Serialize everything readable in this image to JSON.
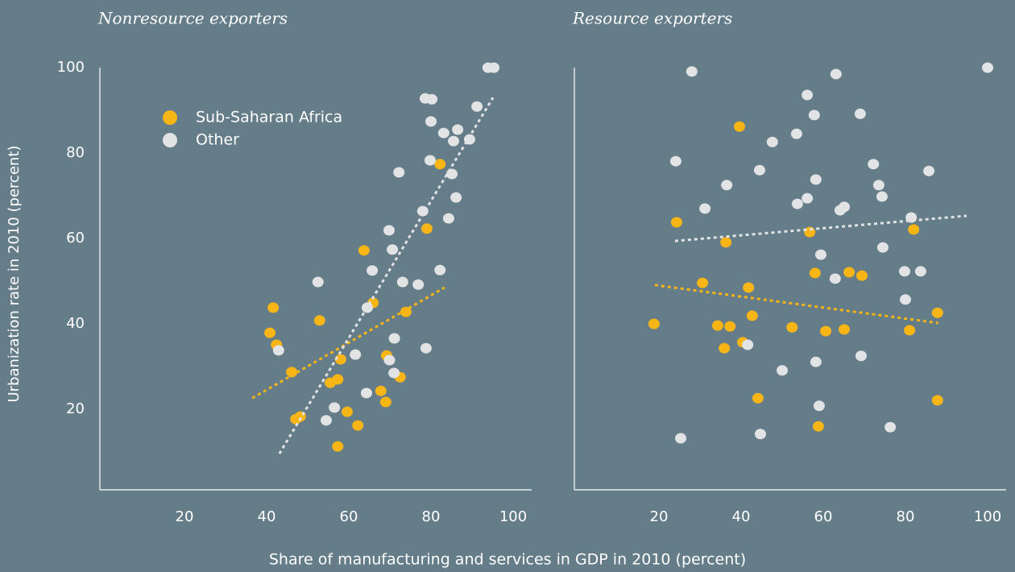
{
  "x_label": "Share of manufacturing and services in GDP in 2010 (percent)",
  "y_label": "Urbanization rate in 2010 (percent)",
  "chart_data": [
    {
      "type": "scatter",
      "title": "Nonresource exporters",
      "xlim": [
        0,
        100
      ],
      "ylim": [
        0,
        100
      ],
      "xticks": [
        20,
        40,
        60,
        80,
        100
      ],
      "yticks": [
        20,
        40,
        60,
        80,
        100
      ],
      "legend": "upper-left",
      "series": [
        {
          "name": "Sub-Saharan Africa",
          "color": "#f7b516",
          "x": [
            41.6,
            40.8,
            42.4,
            46.1,
            52.9,
            47.1,
            48.2,
            55.5,
            57.3,
            58.0,
            57.3,
            59.6,
            62.2,
            63.7,
            65.9,
            67.8,
            69.0,
            69.2,
            72.5,
            73.9,
            79.0,
            82.2
          ],
          "values": [
            43.8,
            37.9,
            35.1,
            28.7,
            40.8,
            17.7,
            18.3,
            26.2,
            27.0,
            31.7,
            11.3,
            19.4,
            16.2,
            57.2,
            44.9,
            24.3,
            21.7,
            32.6,
            27.5,
            42.8,
            62.3,
            77.4
          ],
          "trend": {
            "x": [
              36.5,
              83.3
            ],
            "y": [
              22.6,
              48.5
            ]
          }
        },
        {
          "name": "Other",
          "color": "#e2e3e5",
          "x": [
            42.9,
            52.5,
            54.5,
            56.5,
            61.6,
            64.3,
            64.5,
            65.7,
            69.8,
            70.6,
            69.9,
            71.1,
            71.0,
            72.2,
            73.1,
            76.9,
            78.8,
            78.0,
            78.6,
            80.2,
            80.0,
            79.8,
            83.1,
            84.3,
            85.1,
            85.5,
            86.1,
            86.5,
            82.2,
            89.4,
            91.2,
            93.9,
            95.3
          ],
          "values": [
            33.8,
            49.8,
            17.4,
            20.4,
            32.8,
            23.8,
            43.8,
            52.5,
            61.9,
            57.4,
            31.5,
            36.6,
            28.5,
            75.5,
            49.8,
            49.2,
            34.3,
            66.4,
            92.8,
            92.6,
            87.4,
            78.3,
            84.7,
            64.7,
            75.1,
            82.8,
            69.6,
            85.5,
            52.6,
            83.2,
            90.9,
            100,
            100
          ],
          "trend": {
            "x": [
              43.1,
              95.1
            ],
            "y": [
              9.6,
              93.0
            ]
          }
        }
      ]
    },
    {
      "type": "scatter",
      "title": "Resource exporters",
      "xlim": [
        0,
        100
      ],
      "ylim": [
        0,
        100
      ],
      "xticks": [
        20,
        40,
        60,
        80,
        100
      ],
      "series": [
        {
          "color": "#f7b516",
          "x": [
            18.8,
            24.3,
            30.6,
            34.3,
            37.3,
            35.9,
            36.3,
            39.6,
            40.4,
            41.8,
            42.7,
            44.1,
            52.4,
            56.7,
            58.0,
            60.6,
            58.8,
            65.1,
            66.3,
            69.4,
            82.0,
            81.0,
            87.8,
            87.8
          ],
          "values": [
            40.0,
            63.8,
            49.6,
            39.6,
            39.4,
            34.3,
            59.1,
            86.2,
            35.7,
            48.5,
            41.9,
            22.6,
            39.2,
            61.5,
            51.9,
            38.3,
            16.0,
            38.7,
            52.1,
            51.3,
            62.1,
            38.5,
            42.6,
            22.1
          ],
          "trend": {
            "x": [
              19.0,
              88.0
            ],
            "y": [
              49.1,
              40.2
            ]
          }
        },
        {
          "color": "#e2e3e5",
          "x": [
            25.3,
            24.1,
            28.0,
            31.2,
            36.5,
            41.6,
            44.5,
            44.7,
            47.6,
            50.0,
            53.5,
            53.7,
            56.1,
            56.1,
            57.8,
            58.2,
            58.2,
            59.0,
            59.4,
            62.9,
            63.1,
            64.1,
            65.1,
            69.2,
            69.0,
            72.2,
            73.5,
            74.3,
            74.5,
            76.3,
            79.8,
            80.0,
            81.4,
            83.7,
            85.7,
            100
          ],
          "values": [
            13.2,
            78.1,
            99.1,
            67.0,
            72.5,
            35.1,
            76.0,
            14.2,
            82.6,
            29.1,
            84.5,
            68.1,
            69.4,
            93.6,
            88.9,
            73.8,
            31.1,
            20.8,
            56.2,
            50.6,
            98.5,
            66.6,
            67.4,
            32.5,
            89.2,
            77.4,
            72.5,
            69.8,
            57.9,
            15.8,
            52.3,
            45.7,
            64.9,
            52.3,
            75.8,
            100
          ],
          "trend": {
            "x": [
              23.9,
              94.9
            ],
            "y": [
              59.4,
              65.3
            ]
          }
        }
      ]
    }
  ]
}
